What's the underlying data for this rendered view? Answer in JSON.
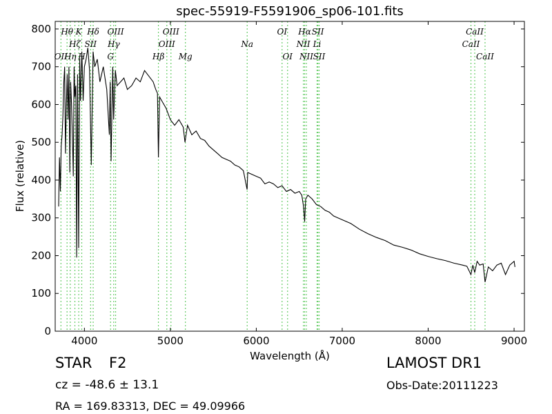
{
  "chart_data": {
    "type": "line",
    "title": "spec-55919-F5591906_sp06-101.fits",
    "xlabel": "Wavelength (Å)",
    "ylabel": "Flux (relative)",
    "xlim": [
      3660,
      9120
    ],
    "ylim": [
      0,
      820
    ],
    "xticks": [
      4000,
      5000,
      6000,
      7000,
      8000,
      9000
    ],
    "yticks": [
      0,
      100,
      200,
      300,
      400,
      500,
      600,
      700,
      800
    ],
    "grid": false,
    "series": [
      {
        "x": [
          3700,
          3710,
          3720,
          3730,
          3740,
          3750,
          3760,
          3770,
          3780,
          3790,
          3800,
          3810,
          3820,
          3830,
          3840,
          3850,
          3860,
          3870,
          3880,
          3889,
          3900,
          3910,
          3920,
          3933,
          3945,
          3955,
          3970,
          3985,
          4000,
          4020,
          4040,
          4060,
          4080,
          4101,
          4120,
          4150,
          4180,
          4220,
          4260,
          4290,
          4300,
          4310,
          4330,
          4340,
          4360,
          4380,
          4420,
          4460,
          4500,
          4550,
          4600,
          4650,
          4700,
          4750,
          4800,
          4830,
          4850,
          4861,
          4875,
          4900,
          4950,
          5000,
          5050,
          5100,
          5150,
          5170,
          5183,
          5200,
          5250,
          5300,
          5350,
          5400,
          5450,
          5500,
          5550,
          5600,
          5650,
          5700,
          5750,
          5800,
          5850,
          5893,
          5900,
          5950,
          6000,
          6050,
          6100,
          6150,
          6200,
          6250,
          6300,
          6350,
          6400,
          6450,
          6500,
          6530,
          6550,
          6563,
          6575,
          6600,
          6650,
          6700,
          6750,
          6800,
          6850,
          6900,
          6950,
          7000,
          7100,
          7200,
          7300,
          7400,
          7500,
          7600,
          7700,
          7800,
          7900,
          8000,
          8100,
          8200,
          8300,
          8400,
          8450,
          8498,
          8520,
          8542,
          8570,
          8600,
          8640,
          8662,
          8700,
          8750,
          8800,
          8850,
          8900,
          8950,
          9000,
          9010
        ],
        "y": [
          330,
          460,
          370,
          490,
          520,
          570,
          660,
          700,
          470,
          600,
          680,
          560,
          700,
          420,
          660,
          600,
          520,
          410,
          700,
          620,
          650,
          195,
          680,
          220,
          720,
          610,
          740,
          610,
          700,
          720,
          750,
          690,
          440,
          740,
          700,
          720,
          660,
          700,
          640,
          520,
          660,
          450,
          700,
          560,
          690,
          650,
          660,
          670,
          640,
          650,
          670,
          660,
          690,
          675,
          660,
          640,
          630,
          460,
          620,
          610,
          590,
          560,
          545,
          560,
          540,
          500,
          520,
          545,
          520,
          530,
          510,
          505,
          490,
          480,
          470,
          460,
          455,
          450,
          440,
          435,
          425,
          375,
          420,
          415,
          410,
          405,
          390,
          395,
          390,
          380,
          385,
          370,
          375,
          365,
          370,
          360,
          330,
          290,
          350,
          360,
          350,
          335,
          330,
          320,
          315,
          305,
          300,
          295,
          285,
          270,
          258,
          248,
          240,
          228,
          222,
          215,
          205,
          198,
          192,
          187,
          180,
          175,
          172,
          150,
          175,
          155,
          185,
          175,
          178,
          130,
          170,
          160,
          175,
          180,
          150,
          175,
          185,
          170
        ]
      }
    ],
    "line_marks": [
      {
        "label": "OII",
        "x": 3727,
        "row": "f3"
      },
      {
        "label": "Hθ",
        "x": 3798,
        "row": "f1"
      },
      {
        "label": "Hη",
        "x": 3835,
        "row": "f3"
      },
      {
        "label": "Hζ",
        "x": 3889,
        "row": "f2"
      },
      {
        "label": "K",
        "x": 3934,
        "row": "f1"
      },
      {
        "label": "H",
        "x": 3969,
        "row": "f3"
      },
      {
        "label": "SII",
        "x": 4072,
        "row": "f2"
      },
      {
        "label": "Hδ",
        "x": 4102,
        "row": "f1"
      },
      {
        "label": "G",
        "x": 4304,
        "row": "f3"
      },
      {
        "label": "Hγ",
        "x": 4341,
        "row": "f2"
      },
      {
        "label": "OIII",
        "x": 4363,
        "row": "f1"
      },
      {
        "label": "Hβ",
        "x": 4861,
        "row": "f3"
      },
      {
        "label": "OIII",
        "x": 4959,
        "row": "f2"
      },
      {
        "label": "OIII",
        "x": 5007,
        "row": "f1"
      },
      {
        "label": "Mg",
        "x": 5175,
        "row": "f3"
      },
      {
        "label": "Na",
        "x": 5894,
        "row": "f2"
      },
      {
        "label": "OI",
        "x": 6300,
        "row": "f1"
      },
      {
        "label": "OI",
        "x": 6364,
        "row": "f3"
      },
      {
        "label": "NII",
        "x": 6548,
        "row": "f2"
      },
      {
        "label": "Hα",
        "x": 6563,
        "row": "f1"
      },
      {
        "label": "NII",
        "x": 6583,
        "row": "f3"
      },
      {
        "label": "Li",
        "x": 6707,
        "row": "f2"
      },
      {
        "label": "SII",
        "x": 6716,
        "row": "f1"
      },
      {
        "label": "SII",
        "x": 6731,
        "row": "f3"
      },
      {
        "label": "CaII",
        "x": 8498,
        "row": "f2"
      },
      {
        "label": "CaII",
        "x": 8542,
        "row": "f1"
      },
      {
        "label": "CaII",
        "x": 8662,
        "row": "f3"
      }
    ]
  },
  "info": {
    "class_label": "STAR",
    "subclass_label": "F2",
    "survey_label": "LAMOST DR1",
    "cz_label": "cz = -48.6 ± 13.1",
    "obs_date": "Obs-Date:20111223",
    "coords": "RA = 169.83313, DEC = 49.09966"
  },
  "colors": {
    "line": "#000000",
    "marker_lines": "#66cc66"
  }
}
